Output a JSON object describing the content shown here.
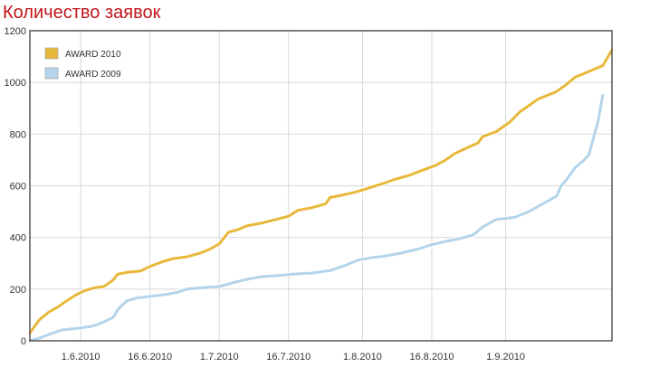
{
  "title": "Количество заявок",
  "colors": {
    "title": "#c0161a",
    "award_2010": "#e8b83a",
    "award_2009": "#b3d4ea",
    "grid": "#d8d8d8",
    "axis": "#555555"
  },
  "chart_data": {
    "type": "line",
    "title": "Количество заявок",
    "xlabel": "",
    "ylabel": "",
    "ylim": [
      0,
      1200
    ],
    "xlim": [
      "2010-05-21",
      "2010-09-24"
    ],
    "yticks": [
      0,
      200,
      400,
      600,
      800,
      1000,
      1200
    ],
    "xticks": [
      {
        "date": "2010-06-01",
        "label": "1.6.2010"
      },
      {
        "date": "2010-06-16",
        "label": "16.6.2010"
      },
      {
        "date": "2010-07-01",
        "label": "1.7.2010"
      },
      {
        "date": "2010-07-16",
        "label": "16.7.2010"
      },
      {
        "date": "2010-08-01",
        "label": "1.8.2010"
      },
      {
        "date": "2010-08-16",
        "label": "16.8.2010"
      },
      {
        "date": "2010-09-01",
        "label": "1.9.2010"
      }
    ],
    "grid": true,
    "legend_position": "top-left",
    "series": [
      {
        "name": "AWARD 2010",
        "color": "#e8b83a",
        "points": [
          [
            "2010-05-21",
            30
          ],
          [
            "2010-05-23",
            80
          ],
          [
            "2010-05-25",
            110
          ],
          [
            "2010-05-27",
            130
          ],
          [
            "2010-05-29",
            155
          ],
          [
            "2010-05-31",
            178
          ],
          [
            "2010-06-02",
            195
          ],
          [
            "2010-06-04",
            205
          ],
          [
            "2010-06-06",
            210
          ],
          [
            "2010-06-08",
            235
          ],
          [
            "2010-06-09",
            258
          ],
          [
            "2010-06-11",
            265
          ],
          [
            "2010-06-14",
            270
          ],
          [
            "2010-06-16",
            288
          ],
          [
            "2010-06-19",
            308
          ],
          [
            "2010-06-21",
            318
          ],
          [
            "2010-06-24",
            325
          ],
          [
            "2010-06-27",
            340
          ],
          [
            "2010-06-29",
            355
          ],
          [
            "2010-07-01",
            375
          ],
          [
            "2010-07-03",
            420
          ],
          [
            "2010-07-05",
            430
          ],
          [
            "2010-07-07",
            445
          ],
          [
            "2010-07-10",
            455
          ],
          [
            "2010-07-13",
            468
          ],
          [
            "2010-07-16",
            482
          ],
          [
            "2010-07-18",
            505
          ],
          [
            "2010-07-21",
            515
          ],
          [
            "2010-07-24",
            530
          ],
          [
            "2010-07-25",
            555
          ],
          [
            "2010-07-28",
            565
          ],
          [
            "2010-07-31",
            578
          ],
          [
            "2010-08-03",
            595
          ],
          [
            "2010-08-06",
            612
          ],
          [
            "2010-08-08",
            625
          ],
          [
            "2010-08-11",
            640
          ],
          [
            "2010-08-14",
            660
          ],
          [
            "2010-08-17",
            680
          ],
          [
            "2010-08-19",
            700
          ],
          [
            "2010-08-21",
            725
          ],
          [
            "2010-08-24",
            750
          ],
          [
            "2010-08-26",
            765
          ],
          [
            "2010-08-27",
            790
          ],
          [
            "2010-08-30",
            810
          ],
          [
            "2010-09-02",
            848
          ],
          [
            "2010-09-04",
            885
          ],
          [
            "2010-09-06",
            910
          ],
          [
            "2010-09-08",
            935
          ],
          [
            "2010-09-10",
            950
          ],
          [
            "2010-09-12",
            965
          ],
          [
            "2010-09-14",
            990
          ],
          [
            "2010-09-16",
            1020
          ],
          [
            "2010-09-18",
            1035
          ],
          [
            "2010-09-20",
            1050
          ],
          [
            "2010-09-22",
            1065
          ],
          [
            "2010-09-24",
            1125
          ]
        ]
      },
      {
        "name": "AWARD 2009",
        "color": "#b3d4ea",
        "points": [
          [
            "2010-05-21",
            0
          ],
          [
            "2010-05-23",
            10
          ],
          [
            "2010-05-26",
            30
          ],
          [
            "2010-05-28",
            42
          ],
          [
            "2010-06-01",
            50
          ],
          [
            "2010-06-03",
            55
          ],
          [
            "2010-06-05",
            65
          ],
          [
            "2010-06-08",
            90
          ],
          [
            "2010-06-09",
            120
          ],
          [
            "2010-06-11",
            155
          ],
          [
            "2010-06-13",
            165
          ],
          [
            "2010-06-16",
            172
          ],
          [
            "2010-06-19",
            178
          ],
          [
            "2010-06-22",
            188
          ],
          [
            "2010-06-24",
            200
          ],
          [
            "2010-06-27",
            205
          ],
          [
            "2010-07-01",
            210
          ],
          [
            "2010-07-04",
            225
          ],
          [
            "2010-07-07",
            238
          ],
          [
            "2010-07-10",
            248
          ],
          [
            "2010-07-14",
            253
          ],
          [
            "2010-07-17",
            258
          ],
          [
            "2010-07-21",
            262
          ],
          [
            "2010-07-25",
            272
          ],
          [
            "2010-07-28",
            290
          ],
          [
            "2010-07-31",
            312
          ],
          [
            "2010-08-03",
            322
          ],
          [
            "2010-08-06",
            328
          ],
          [
            "2010-08-09",
            338
          ],
          [
            "2010-08-13",
            355
          ],
          [
            "2010-08-16",
            372
          ],
          [
            "2010-08-19",
            385
          ],
          [
            "2010-08-22",
            395
          ],
          [
            "2010-08-25",
            410
          ],
          [
            "2010-08-27",
            440
          ],
          [
            "2010-08-30",
            470
          ],
          [
            "2010-09-03",
            478
          ],
          [
            "2010-09-06",
            500
          ],
          [
            "2010-09-09",
            530
          ],
          [
            "2010-09-12",
            560
          ],
          [
            "2010-09-13",
            600
          ],
          [
            "2010-09-14",
            620
          ],
          [
            "2010-09-16",
            670
          ],
          [
            "2010-09-18",
            700
          ],
          [
            "2010-09-19",
            720
          ],
          [
            "2010-09-21",
            850
          ],
          [
            "2010-09-22",
            950
          ]
        ]
      }
    ]
  }
}
